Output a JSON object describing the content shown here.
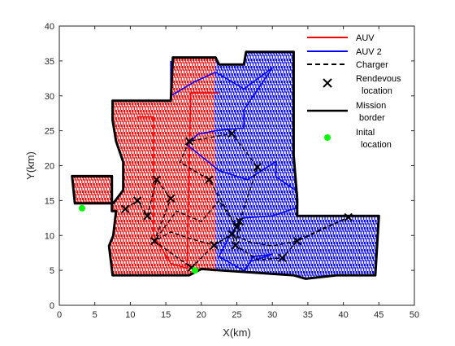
{
  "chart_data": {
    "type": "line",
    "xlabel": "X(km)",
    "ylabel": "Y(km)",
    "xlim": [
      0,
      50
    ],
    "ylim": [
      0,
      40
    ],
    "x_ticks": [
      0,
      5,
      10,
      15,
      20,
      25,
      30,
      35,
      40,
      45,
      50
    ],
    "y_ticks": [
      0,
      5,
      10,
      15,
      20,
      25,
      30,
      35,
      40
    ],
    "grid": false,
    "legend_position": "top-right",
    "colors": {
      "auv": "#ff0000",
      "auv2": "#0000ff",
      "charger": "#000000",
      "border": "#000000",
      "initial": "#00ff00"
    },
    "legend": [
      {
        "label": "AUV",
        "style": "red-solid"
      },
      {
        "label": "AUV 2",
        "style": "blue-solid"
      },
      {
        "label": "Charger",
        "style": "black-dashed"
      },
      {
        "label": "Rendevous\nlocation",
        "style": "x-marker"
      },
      {
        "label": "Mission\nborder",
        "style": "black-solid"
      },
      {
        "label": "Inital\nlocation",
        "style": "green-dot"
      }
    ],
    "series": [
      {
        "name": "Mission border",
        "points": [
          [
            1.8,
            18.5
          ],
          [
            7.4,
            18.5
          ],
          [
            7.4,
            13.5
          ],
          [
            8,
            13.5
          ],
          [
            7.6,
            10
          ],
          [
            7,
            8.5
          ],
          [
            7.5,
            4.3
          ],
          [
            18.3,
            4.3
          ],
          [
            20,
            5.2
          ],
          [
            33,
            4.3
          ],
          [
            34.7,
            3.8
          ],
          [
            39,
            4.3
          ],
          [
            44.5,
            4.3
          ],
          [
            45,
            12.8
          ],
          [
            33.5,
            12.8
          ],
          [
            33.5,
            15.2
          ],
          [
            33,
            21.5
          ],
          [
            33,
            33
          ],
          [
            33,
            36.3
          ],
          [
            26.3,
            36.3
          ],
          [
            26,
            34.5
          ],
          [
            22.5,
            34.5
          ],
          [
            22,
            35.5
          ],
          [
            16,
            35.5
          ],
          [
            15.7,
            29.3
          ],
          [
            7.5,
            29.3
          ],
          [
            7.5,
            26.5
          ],
          [
            8,
            23.5
          ],
          [
            9,
            20.5
          ],
          [
            9,
            18.5
          ],
          [
            9,
            16.5
          ],
          [
            7.6,
            14.6
          ],
          [
            2.2,
            14.6
          ],
          [
            1.8,
            18.5
          ]
        ]
      }
    ],
    "rendezvous_points": [
      [
        9.3,
        13.8
      ],
      [
        11,
        15
      ],
      [
        12.4,
        12.8
      ],
      [
        13.4,
        9.2
      ],
      [
        13.7,
        18
      ],
      [
        15.7,
        15.3
      ],
      [
        18.3,
        23.5
      ],
      [
        18.6,
        5.4
      ],
      [
        21.1,
        18
      ],
      [
        21.8,
        8.6
      ],
      [
        24.3,
        10.2
      ],
      [
        24.3,
        24.6
      ],
      [
        24.8,
        8.6
      ],
      [
        25,
        11.2
      ],
      [
        25.4,
        12
      ],
      [
        27.9,
        19.8
      ],
      [
        31.4,
        6.8
      ],
      [
        33.5,
        9.2
      ],
      [
        40.7,
        12.6
      ]
    ],
    "initial_locations": [
      [
        3.2,
        13.9
      ],
      [
        19.1,
        5
      ]
    ],
    "auv_region": [
      [
        1.8,
        18.5
      ],
      [
        7.4,
        18.5
      ],
      [
        7.4,
        13.5
      ],
      [
        8,
        13.5
      ],
      [
        7.6,
        10
      ],
      [
        7,
        8.5
      ],
      [
        7.5,
        4.3
      ],
      [
        18.3,
        4.3
      ],
      [
        20,
        5.2
      ],
      [
        22,
        4.8
      ],
      [
        22,
        10
      ],
      [
        22,
        20
      ],
      [
        21.8,
        30
      ],
      [
        22,
        34.5
      ],
      [
        22,
        35.5
      ],
      [
        16,
        35.5
      ],
      [
        15.7,
        29.3
      ],
      [
        7.5,
        29.3
      ],
      [
        7.5,
        26.5
      ],
      [
        8,
        23.5
      ],
      [
        9,
        20.5
      ],
      [
        9,
        18.5
      ],
      [
        9,
        16.5
      ],
      [
        7.6,
        14.6
      ],
      [
        2.2,
        14.6
      ],
      [
        1.8,
        18.5
      ]
    ],
    "auv2_region": [
      [
        13,
        29.3
      ],
      [
        13.3,
        4.3
      ],
      [
        18.3,
        4.3
      ],
      [
        20,
        5.2
      ],
      [
        33,
        4.3
      ],
      [
        34.7,
        3.8
      ],
      [
        39,
        4.3
      ],
      [
        44.5,
        4.3
      ],
      [
        45,
        12.8
      ],
      [
        33.5,
        12.8
      ],
      [
        33.5,
        15.2
      ],
      [
        33,
        21.5
      ],
      [
        33,
        36.3
      ],
      [
        26.3,
        36.3
      ],
      [
        26,
        34.5
      ],
      [
        22.5,
        34.5
      ],
      [
        22,
        35.5
      ],
      [
        16,
        35.5
      ],
      [
        15.7,
        29.3
      ],
      [
        13,
        29.3
      ]
    ],
    "auv_path": [
      [
        11,
        27
      ],
      [
        13.3,
        27
      ],
      [
        13.3,
        10
      ],
      [
        15.7,
        6
      ],
      [
        18,
        5.3
      ],
      [
        18.5,
        30.4
      ],
      [
        22.5,
        30.4
      ]
    ],
    "auv2_path": [
      [
        15.7,
        35
      ],
      [
        15.7,
        30
      ],
      [
        19,
        32
      ],
      [
        22,
        33.4
      ],
      [
        26,
        31
      ],
      [
        30,
        34
      ],
      [
        26,
        28
      ],
      [
        26,
        25.4
      ],
      [
        22,
        25
      ],
      [
        19.5,
        24.5
      ],
      [
        18,
        23
      ],
      [
        22.5,
        19.3
      ],
      [
        26.5,
        18
      ],
      [
        30.5,
        20.6
      ],
      [
        30.5,
        18.4
      ],
      [
        33.5,
        16.3
      ],
      [
        33.5,
        14
      ],
      [
        30,
        12.8
      ],
      [
        25.8,
        12.5
      ],
      [
        24,
        10
      ],
      [
        22.5,
        7
      ],
      [
        25,
        5.5
      ],
      [
        26,
        5
      ],
      [
        27,
        6.3
      ],
      [
        30,
        7.3
      ],
      [
        27.3,
        7
      ],
      [
        26,
        4.7
      ]
    ],
    "charger_path": [
      [
        9.3,
        13.8
      ],
      [
        11,
        15
      ],
      [
        12.4,
        12.8
      ],
      [
        13.7,
        18
      ],
      [
        15.7,
        15.3
      ],
      [
        13.4,
        9.2
      ],
      [
        15.7,
        10.5
      ],
      [
        18.6,
        9.5
      ],
      [
        21.8,
        8.6
      ],
      [
        24.3,
        10.2
      ],
      [
        24.8,
        8.6
      ],
      [
        25.4,
        12
      ],
      [
        27.9,
        19.8
      ],
      [
        24.3,
        24.6
      ],
      [
        18.3,
        23.5
      ],
      [
        17,
        20.5
      ],
      [
        21.1,
        18
      ],
      [
        25,
        11.2
      ],
      [
        22.5,
        15
      ],
      [
        20,
        12
      ],
      [
        16.5,
        13.5
      ],
      [
        13.4,
        9.2
      ],
      [
        18.6,
        5.4
      ],
      [
        21.8,
        8.6
      ],
      [
        24.3,
        10.2
      ],
      [
        27,
        9
      ],
      [
        30,
        8.5
      ],
      [
        33.5,
        9.2
      ],
      [
        36,
        10.5
      ],
      [
        40.7,
        12.6
      ],
      [
        36.5,
        10.6
      ],
      [
        33.5,
        9.2
      ],
      [
        31.4,
        6.8
      ],
      [
        28,
        6.5
      ],
      [
        24.8,
        8.6
      ]
    ]
  }
}
